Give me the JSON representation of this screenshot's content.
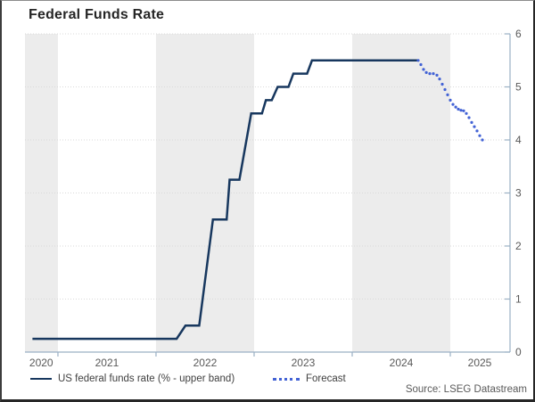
{
  "title": "Federal Funds Rate",
  "source_note": "Source: LSEG Datastream",
  "legend": {
    "items": [
      {
        "label": "US federal funds rate (% - upper band)",
        "style": "solid"
      },
      {
        "label": "Forecast",
        "style": "dotted"
      }
    ]
  },
  "colors": {
    "solid_line": "#17375e",
    "forecast_dots": "#4262d5",
    "year_band": "#ececec",
    "gridline": "#d9d9d9",
    "axis": "#9ab0c4",
    "tick_text": "#595959",
    "title_text": "#262626",
    "legend_text": "#404040",
    "source_text": "#595959"
  },
  "chart_data": {
    "type": "line",
    "title": "Federal Funds Rate",
    "xlabel": "",
    "ylabel": "",
    "grid": "horizontal-dotted",
    "legend_position": "bottom-left",
    "x_axis": {
      "range": [
        2020.664,
        2025.609
      ],
      "tick_years": [
        2021,
        2022,
        2023,
        2024,
        2025
      ],
      "labels": [
        "2020",
        "2021",
        "2022",
        "2023",
        "2024",
        "2025"
      ],
      "label_positions": [
        2020.83,
        2021.5,
        2022.5,
        2023.5,
        2024.5,
        2025.3
      ]
    },
    "y_axis": {
      "side": "right",
      "range": [
        0,
        6
      ],
      "ticks": [
        0,
        1,
        2,
        3,
        4,
        5,
        6
      ],
      "gridline_values": [
        1,
        2,
        3,
        4,
        5,
        6
      ]
    },
    "year_bands": [
      [
        2020.664,
        2021.0
      ],
      [
        2022.0,
        2023.0
      ],
      [
        2024.0,
        2025.0
      ]
    ],
    "series": [
      {
        "name": "US federal funds rate (% - upper band)",
        "style": "solid",
        "points": [
          [
            2020.74,
            0.25
          ],
          [
            2022.21,
            0.25
          ],
          [
            2022.3,
            0.5
          ],
          [
            2022.44,
            0.5
          ],
          [
            2022.58,
            2.5
          ],
          [
            2022.72,
            2.5
          ],
          [
            2022.75,
            3.25
          ],
          [
            2022.85,
            3.25
          ],
          [
            2022.97,
            4.5
          ],
          [
            2023.08,
            4.5
          ],
          [
            2023.12,
            4.75
          ],
          [
            2023.18,
            4.75
          ],
          [
            2023.24,
            5.0
          ],
          [
            2023.35,
            5.0
          ],
          [
            2023.4,
            5.25
          ],
          [
            2023.54,
            5.25
          ],
          [
            2023.59,
            5.5
          ],
          [
            2024.67,
            5.5
          ]
        ]
      },
      {
        "name": "Forecast",
        "style": "dotted",
        "points": [
          [
            2024.673,
            5.5
          ],
          [
            2024.7,
            5.42
          ],
          [
            2024.727,
            5.33
          ],
          [
            2024.755,
            5.27
          ],
          [
            2024.791,
            5.25
          ],
          [
            2024.827,
            5.25
          ],
          [
            2024.864,
            5.22
          ],
          [
            2024.891,
            5.15
          ],
          [
            2024.918,
            5.05
          ],
          [
            2024.945,
            4.95
          ],
          [
            2024.973,
            4.85
          ],
          [
            2025.0,
            4.75
          ],
          [
            2025.027,
            4.67
          ],
          [
            2025.055,
            4.62
          ],
          [
            2025.082,
            4.58
          ],
          [
            2025.109,
            4.56
          ],
          [
            2025.136,
            4.55
          ],
          [
            2025.164,
            4.5
          ],
          [
            2025.191,
            4.42
          ],
          [
            2025.218,
            4.33
          ],
          [
            2025.245,
            4.25
          ],
          [
            2025.273,
            4.17
          ],
          [
            2025.3,
            4.08
          ],
          [
            2025.327,
            4.0
          ]
        ]
      }
    ]
  }
}
